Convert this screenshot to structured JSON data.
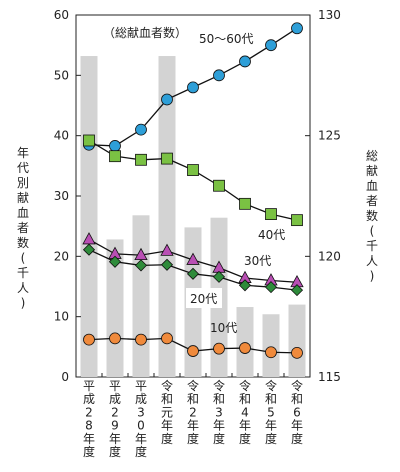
{
  "chart_data": {
    "type": "bar+line",
    "categories": [
      "平成28年度",
      "平成29年度",
      "平成30年度",
      "令和元年度",
      "令和2年度",
      "令和3年度",
      "令和4年度",
      "令和5年度",
      "令和6年度"
    ],
    "bar_series": {
      "name": "総献血者数",
      "axis": "right",
      "values": [
        128.3,
        120.7,
        121.7,
        128.3,
        121.2,
        121.6,
        117.9,
        117.6,
        118.0
      ],
      "color": "#d3d3d3"
    },
    "line_series": [
      {
        "name": "50～60代",
        "values": [
          38.5,
          38.3,
          41.0,
          46.0,
          48.0,
          50.0,
          52.3,
          55.0,
          57.8
        ],
        "color": "#2e9fd8",
        "marker": "circle"
      },
      {
        "name": "40代",
        "values": [
          39.2,
          36.6,
          36.0,
          36.2,
          34.3,
          31.7,
          28.7,
          27.0,
          26.0
        ],
        "color": "#7ac143",
        "marker": "square"
      },
      {
        "name": "30代",
        "values": [
          22.8,
          20.4,
          20.2,
          20.9,
          19.4,
          18.1,
          16.4,
          16.0,
          15.7
        ],
        "color": "#b94fb4",
        "marker": "triangle"
      },
      {
        "name": "20代",
        "values": [
          21.1,
          19.1,
          18.5,
          18.6,
          17.1,
          16.6,
          15.2,
          14.9,
          14.4
        ],
        "color": "#2e8b3a",
        "marker": "diamond"
      },
      {
        "name": "10代",
        "values": [
          6.2,
          6.4,
          6.2,
          6.4,
          4.3,
          4.7,
          4.8,
          4.1,
          4.0
        ],
        "color": "#f08a3c",
        "marker": "circle"
      }
    ],
    "y_left": {
      "label": "年代別献血者数（千人）",
      "lim": [
        0,
        60
      ],
      "ticks": [
        "0",
        "10",
        "20",
        "30",
        "40",
        "50",
        "60"
      ]
    },
    "y_right": {
      "label": "総献血者数（千人）",
      "lim": [
        115,
        130
      ],
      "ticks": [
        "115",
        "120",
        "125",
        "130"
      ]
    },
    "annotation": "（総献血者数）",
    "grid": false
  }
}
